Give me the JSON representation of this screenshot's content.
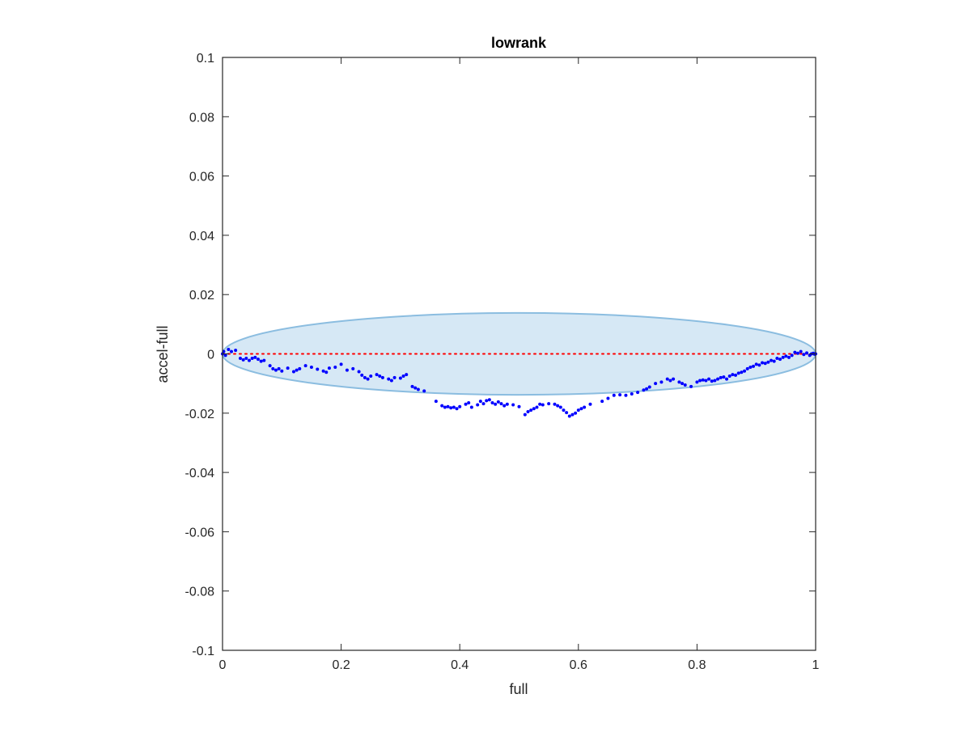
{
  "chart_data": {
    "type": "scatter",
    "title": "lowrank",
    "xlabel": "full",
    "ylabel": "accel-full",
    "xlim": [
      0,
      1
    ],
    "ylim": [
      -0.1,
      0.1
    ],
    "xticks": [
      0,
      0.2,
      0.4,
      0.6,
      0.8,
      1
    ],
    "xtick_labels": [
      "0",
      "0.2",
      "0.4",
      "0.6",
      "0.8",
      "1"
    ],
    "yticks": [
      -0.1,
      -0.08,
      -0.06,
      -0.04,
      -0.02,
      0,
      0.02,
      0.04,
      0.06,
      0.08,
      0.1
    ],
    "ytick_labels": [
      "-0.1",
      "-0.08",
      "-0.06",
      "-0.04",
      "-0.02",
      "0",
      "0.02",
      "0.04",
      "0.06",
      "0.08",
      "0.1"
    ],
    "grid": false,
    "colors": {
      "points": "#0000ff",
      "reference_line": "#ff0000",
      "ellipse_fill": "#d6e8f5",
      "ellipse_stroke": "#8bbde0",
      "axes": "#262626"
    },
    "reference_line": {
      "y": 0,
      "style": "dotted"
    },
    "ellipse": {
      "cx": 0.5,
      "cy": 0,
      "rx": 0.5,
      "ry": 0.0138
    },
    "points": [
      [
        0.0,
        0.0
      ],
      [
        0.002,
        0.0008
      ],
      [
        0.005,
        -0.0005
      ],
      [
        0.01,
        0.0015
      ],
      [
        0.015,
        0.0008
      ],
      [
        0.022,
        0.0012
      ],
      [
        0.03,
        -0.0015
      ],
      [
        0.035,
        -0.002
      ],
      [
        0.04,
        -0.0015
      ],
      [
        0.045,
        -0.0022
      ],
      [
        0.05,
        -0.0015
      ],
      [
        0.055,
        -0.0012
      ],
      [
        0.06,
        -0.0018
      ],
      [
        0.065,
        -0.0025
      ],
      [
        0.07,
        -0.0022
      ],
      [
        0.08,
        -0.004
      ],
      [
        0.085,
        -0.005
      ],
      [
        0.09,
        -0.0055
      ],
      [
        0.095,
        -0.005
      ],
      [
        0.1,
        -0.0058
      ],
      [
        0.11,
        -0.0048
      ],
      [
        0.12,
        -0.006
      ],
      [
        0.125,
        -0.0055
      ],
      [
        0.13,
        -0.005
      ],
      [
        0.14,
        -0.004
      ],
      [
        0.15,
        -0.0045
      ],
      [
        0.16,
        -0.0052
      ],
      [
        0.17,
        -0.0058
      ],
      [
        0.175,
        -0.0062
      ],
      [
        0.18,
        -0.0048
      ],
      [
        0.19,
        -0.0045
      ],
      [
        0.2,
        -0.0035
      ],
      [
        0.21,
        -0.0055
      ],
      [
        0.22,
        -0.005
      ],
      [
        0.23,
        -0.006
      ],
      [
        0.235,
        -0.0072
      ],
      [
        0.24,
        -0.008
      ],
      [
        0.245,
        -0.0085
      ],
      [
        0.25,
        -0.0075
      ],
      [
        0.26,
        -0.007
      ],
      [
        0.265,
        -0.0075
      ],
      [
        0.27,
        -0.008
      ],
      [
        0.28,
        -0.0085
      ],
      [
        0.285,
        -0.009
      ],
      [
        0.29,
        -0.008
      ],
      [
        0.3,
        -0.0082
      ],
      [
        0.305,
        -0.0075
      ],
      [
        0.31,
        -0.007
      ],
      [
        0.32,
        -0.011
      ],
      [
        0.325,
        -0.0115
      ],
      [
        0.33,
        -0.012
      ],
      [
        0.34,
        -0.0125
      ],
      [
        0.36,
        -0.016
      ],
      [
        0.37,
        -0.0175
      ],
      [
        0.375,
        -0.018
      ],
      [
        0.38,
        -0.0178
      ],
      [
        0.385,
        -0.0182
      ],
      [
        0.39,
        -0.018
      ],
      [
        0.395,
        -0.0185
      ],
      [
        0.4,
        -0.0178
      ],
      [
        0.41,
        -0.017
      ],
      [
        0.415,
        -0.0165
      ],
      [
        0.42,
        -0.018
      ],
      [
        0.43,
        -0.0172
      ],
      [
        0.435,
        -0.016
      ],
      [
        0.44,
        -0.0168
      ],
      [
        0.445,
        -0.0158
      ],
      [
        0.45,
        -0.0155
      ],
      [
        0.455,
        -0.0165
      ],
      [
        0.46,
        -0.017
      ],
      [
        0.465,
        -0.0162
      ],
      [
        0.47,
        -0.0168
      ],
      [
        0.475,
        -0.0175
      ],
      [
        0.48,
        -0.017
      ],
      [
        0.49,
        -0.0172
      ],
      [
        0.5,
        -0.0178
      ],
      [
        0.51,
        -0.0205
      ],
      [
        0.515,
        -0.0195
      ],
      [
        0.52,
        -0.019
      ],
      [
        0.525,
        -0.0185
      ],
      [
        0.53,
        -0.018
      ],
      [
        0.535,
        -0.017
      ],
      [
        0.54,
        -0.0172
      ],
      [
        0.55,
        -0.0168
      ],
      [
        0.56,
        -0.017
      ],
      [
        0.565,
        -0.0175
      ],
      [
        0.57,
        -0.018
      ],
      [
        0.575,
        -0.019
      ],
      [
        0.58,
        -0.0198
      ],
      [
        0.585,
        -0.021
      ],
      [
        0.59,
        -0.0205
      ],
      [
        0.595,
        -0.02
      ],
      [
        0.6,
        -0.019
      ],
      [
        0.605,
        -0.0185
      ],
      [
        0.61,
        -0.018
      ],
      [
        0.62,
        -0.017
      ],
      [
        0.64,
        -0.016
      ],
      [
        0.65,
        -0.015
      ],
      [
        0.66,
        -0.014
      ],
      [
        0.67,
        -0.0138
      ],
      [
        0.68,
        -0.014
      ],
      [
        0.69,
        -0.0135
      ],
      [
        0.7,
        -0.013
      ],
      [
        0.71,
        -0.0122
      ],
      [
        0.715,
        -0.0118
      ],
      [
        0.72,
        -0.0112
      ],
      [
        0.73,
        -0.01
      ],
      [
        0.74,
        -0.0095
      ],
      [
        0.75,
        -0.0085
      ],
      [
        0.755,
        -0.009
      ],
      [
        0.76,
        -0.0085
      ],
      [
        0.77,
        -0.0095
      ],
      [
        0.775,
        -0.01
      ],
      [
        0.78,
        -0.0105
      ],
      [
        0.79,
        -0.011
      ],
      [
        0.8,
        -0.0095
      ],
      [
        0.805,
        -0.009
      ],
      [
        0.81,
        -0.0088
      ],
      [
        0.815,
        -0.009
      ],
      [
        0.82,
        -0.0085
      ],
      [
        0.825,
        -0.0092
      ],
      [
        0.83,
        -0.009
      ],
      [
        0.835,
        -0.0085
      ],
      [
        0.84,
        -0.008
      ],
      [
        0.845,
        -0.0078
      ],
      [
        0.85,
        -0.0085
      ],
      [
        0.855,
        -0.0075
      ],
      [
        0.86,
        -0.007
      ],
      [
        0.865,
        -0.0072
      ],
      [
        0.87,
        -0.0065
      ],
      [
        0.875,
        -0.0062
      ],
      [
        0.88,
        -0.0058
      ],
      [
        0.885,
        -0.005
      ],
      [
        0.89,
        -0.0045
      ],
      [
        0.895,
        -0.0042
      ],
      [
        0.9,
        -0.0035
      ],
      [
        0.905,
        -0.0038
      ],
      [
        0.91,
        -0.003
      ],
      [
        0.915,
        -0.0032
      ],
      [
        0.92,
        -0.0028
      ],
      [
        0.925,
        -0.0022
      ],
      [
        0.93,
        -0.0025
      ],
      [
        0.935,
        -0.0015
      ],
      [
        0.94,
        -0.0018
      ],
      [
        0.945,
        -0.0012
      ],
      [
        0.95,
        -0.0008
      ],
      [
        0.955,
        -0.0012
      ],
      [
        0.96,
        -0.0005
      ],
      [
        0.965,
        0.0005
      ],
      [
        0.97,
        0.0002
      ],
      [
        0.975,
        0.0008
      ],
      [
        0.98,
        -0.0002
      ],
      [
        0.985,
        0.0003
      ],
      [
        0.99,
        -0.0005
      ],
      [
        0.993,
        0.0
      ],
      [
        0.996,
        0.0002
      ],
      [
        0.998,
        -0.0001
      ],
      [
        1.0,
        0.0
      ]
    ]
  }
}
